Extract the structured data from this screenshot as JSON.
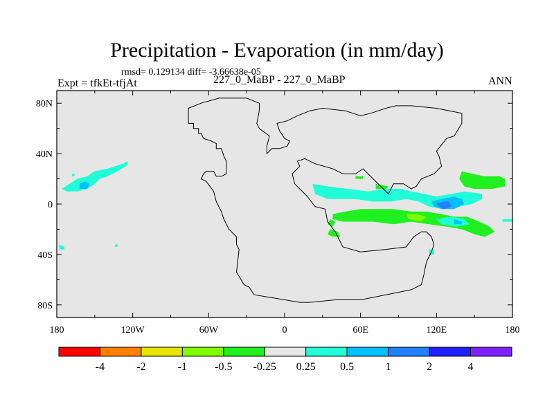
{
  "chart_data": {
    "type": "contour-map",
    "title": "Precipitation - Evaporation (in mm/day)",
    "stats_line": "rmsd= 0.129134 diff= -3.66638e-05",
    "left_label": "Expt = tfkEt-tfjAt",
    "center_label": "227_0_MaBP - 227_0_MaBP",
    "right_label": "ANN",
    "xlim": [
      -180,
      180
    ],
    "ylim": [
      -90,
      90
    ],
    "x_ticks": [
      {
        "value": -180,
        "label": "180"
      },
      {
        "value": -120,
        "label": "120W"
      },
      {
        "value": -60,
        "label": "60W"
      },
      {
        "value": 0,
        "label": "0"
      },
      {
        "value": 60,
        "label": "60E"
      },
      {
        "value": 120,
        "label": "120E"
      },
      {
        "value": 180,
        "label": "180"
      }
    ],
    "y_ticks": [
      {
        "value": 80,
        "label": "80N"
      },
      {
        "value": 40,
        "label": "40N"
      },
      {
        "value": 0,
        "label": "0"
      },
      {
        "value": -40,
        "label": "40S"
      },
      {
        "value": -80,
        "label": "80S"
      }
    ],
    "colorbar": {
      "colors": [
        "#ff0000",
        "#ff8000",
        "#e6e600",
        "#80ff00",
        "#20f020",
        "#e6e6e6",
        "#20ffd8",
        "#00c0ff",
        "#2080ff",
        "#2020ff",
        "#8020ff"
      ],
      "labels": [
        "-4",
        "-2",
        "-1",
        "-0.5",
        "-0.25",
        "0.25",
        "0.5",
        "1",
        "2",
        "4"
      ]
    },
    "coastline": [
      [
        -76,
        68
      ],
      [
        -76,
        64
      ],
      [
        -72,
        64
      ],
      [
        -72,
        60
      ],
      [
        -68,
        60
      ],
      [
        -68,
        56
      ],
      [
        -66,
        56
      ],
      [
        -64,
        52
      ],
      [
        -58,
        50
      ],
      [
        -54,
        48
      ],
      [
        -54,
        44
      ],
      [
        -50,
        44
      ],
      [
        -48,
        38
      ],
      [
        -46,
        34
      ],
      [
        -46,
        24
      ],
      [
        -50,
        22
      ],
      [
        -54,
        22
      ],
      [
        -56,
        26
      ],
      [
        -62,
        26
      ],
      [
        -64,
        24
      ],
      [
        -66,
        20
      ],
      [
        -62,
        18
      ],
      [
        -56,
        10
      ],
      [
        -54,
        2
      ],
      [
        -50,
        -6
      ],
      [
        -48,
        -12
      ],
      [
        -44,
        -20
      ],
      [
        -38,
        -26
      ],
      [
        -38,
        -32
      ],
      [
        -36,
        -36
      ],
      [
        -38,
        -54
      ],
      [
        -32,
        -64
      ],
      [
        -28,
        -66
      ],
      [
        -24,
        -72
      ],
      [
        -12,
        -74
      ],
      [
        12,
        -78
      ],
      [
        20,
        -78
      ],
      [
        40,
        -76
      ],
      [
        60,
        -76
      ],
      [
        80,
        -72
      ],
      [
        100,
        -68
      ],
      [
        108,
        -64
      ],
      [
        110,
        -56
      ],
      [
        112,
        -46
      ],
      [
        116,
        -38
      ],
      [
        118,
        -32
      ],
      [
        116,
        -26
      ],
      [
        112,
        -22
      ],
      [
        108,
        -22
      ],
      [
        102,
        -26
      ],
      [
        96,
        -34
      ],
      [
        80,
        -36
      ],
      [
        60,
        -38
      ],
      [
        46,
        -34
      ],
      [
        40,
        -22
      ],
      [
        34,
        -14
      ],
      [
        32,
        -4
      ],
      [
        24,
        -2
      ],
      [
        18,
        6
      ],
      [
        12,
        12
      ],
      [
        8,
        16
      ],
      [
        6,
        24
      ],
      [
        10,
        28
      ],
      [
        12,
        30
      ],
      [
        10,
        34
      ],
      [
        16,
        36
      ],
      [
        24,
        32
      ],
      [
        38,
        28
      ],
      [
        46,
        24
      ],
      [
        56,
        24
      ],
      [
        62,
        28
      ],
      [
        70,
        20
      ],
      [
        78,
        12
      ],
      [
        82,
        8
      ],
      [
        86,
        16
      ],
      [
        94,
        16
      ],
      [
        100,
        12
      ],
      [
        104,
        14
      ],
      [
        108,
        20
      ],
      [
        118,
        24
      ],
      [
        124,
        30
      ],
      [
        122,
        38
      ],
      [
        120,
        42
      ],
      [
        128,
        52
      ],
      [
        134,
        54
      ],
      [
        140,
        64
      ],
      [
        140,
        72
      ],
      [
        120,
        76
      ],
      [
        100,
        78
      ],
      [
        88,
        78
      ],
      [
        80,
        76
      ],
      [
        68,
        72
      ],
      [
        60,
        70
      ],
      [
        48,
        74
      ],
      [
        30,
        76
      ],
      [
        20,
        74
      ],
      [
        10,
        70
      ],
      [
        2,
        66
      ],
      [
        -6,
        64
      ],
      [
        -4,
        58
      ],
      [
        0,
        52
      ],
      [
        4,
        50
      ],
      [
        2,
        46
      ],
      [
        -4,
        44
      ],
      [
        -10,
        44
      ],
      [
        -14,
        40
      ],
      [
        -14,
        46
      ],
      [
        -12,
        54
      ],
      [
        -20,
        60
      ],
      [
        -22,
        64
      ],
      [
        -20,
        74
      ],
      [
        -20,
        80
      ],
      [
        -30,
        84
      ],
      [
        -40,
        84
      ],
      [
        -52,
        84
      ],
      [
        -66,
        80
      ],
      [
        -76,
        76
      ],
      [
        -76,
        68
      ]
    ],
    "contour_regions": [
      {
        "level_index": 6,
        "points": [
          [
            -170,
            16
          ],
          [
            -164,
            20
          ],
          [
            -156,
            22
          ],
          [
            -150,
            26
          ],
          [
            -140,
            28
          ],
          [
            -134,
            30
          ],
          [
            -128,
            32
          ],
          [
            -124,
            34
          ],
          [
            -124,
            31
          ],
          [
            -132,
            26
          ],
          [
            -140,
            22
          ],
          [
            -146,
            20
          ],
          [
            -150,
            16
          ],
          [
            -156,
            12
          ],
          [
            -164,
            10
          ],
          [
            -172,
            10
          ],
          [
            -176,
            12
          ]
        ]
      },
      {
        "level_index": 7,
        "points": [
          [
            -162,
            16
          ],
          [
            -158,
            18
          ],
          [
            -154,
            16
          ],
          [
            -156,
            12
          ],
          [
            -162,
            12
          ]
        ]
      },
      {
        "level_index": 6,
        "points": [
          [
            -178,
            -32
          ],
          [
            -174,
            -34
          ],
          [
            -174,
            -36
          ],
          [
            -178,
            -36
          ]
        ]
      },
      {
        "level_index": 6,
        "points": [
          [
            -168,
            24
          ],
          [
            -166,
            24
          ],
          [
            -166,
            22
          ],
          [
            -168,
            22
          ]
        ]
      },
      {
        "level_index": 6,
        "points": [
          [
            -134,
            -32
          ],
          [
            -132,
            -32
          ],
          [
            -132,
            -34
          ],
          [
            -134,
            -34
          ]
        ]
      },
      {
        "level_index": 6,
        "points": [
          [
            22,
            16
          ],
          [
            34,
            14
          ],
          [
            50,
            12
          ],
          [
            66,
            10
          ],
          [
            80,
            12
          ],
          [
            92,
            12
          ],
          [
            100,
            10
          ],
          [
            110,
            8
          ],
          [
            120,
            6
          ],
          [
            132,
            8
          ],
          [
            142,
            10
          ],
          [
            156,
            8
          ],
          [
            156,
            4
          ],
          [
            148,
            0
          ],
          [
            138,
            -2
          ],
          [
            126,
            -4
          ],
          [
            114,
            -2
          ],
          [
            106,
            2
          ],
          [
            96,
            4
          ],
          [
            84,
            2
          ],
          [
            70,
            2
          ],
          [
            56,
            4
          ],
          [
            44,
            4
          ],
          [
            34,
            4
          ],
          [
            24,
            8
          ]
        ]
      },
      {
        "level_index": 7,
        "points": [
          [
            116,
            2
          ],
          [
            124,
            4
          ],
          [
            134,
            6
          ],
          [
            140,
            4
          ],
          [
            142,
            0
          ],
          [
            134,
            -4
          ],
          [
            124,
            -4
          ],
          [
            118,
            -2
          ]
        ]
      },
      {
        "level_index": 8,
        "points": [
          [
            120,
            0
          ],
          [
            126,
            2
          ],
          [
            130,
            2
          ],
          [
            132,
            -2
          ],
          [
            126,
            -4
          ],
          [
            122,
            -2
          ]
        ]
      },
      {
        "level_index": 4,
        "points": [
          [
            38,
            -8
          ],
          [
            48,
            -6
          ],
          [
            60,
            -4
          ],
          [
            72,
            -4
          ],
          [
            86,
            -4
          ],
          [
            100,
            -6
          ],
          [
            112,
            -6
          ],
          [
            124,
            -8
          ],
          [
            134,
            -10
          ],
          [
            144,
            -10
          ],
          [
            154,
            -14
          ],
          [
            162,
            -18
          ],
          [
            166,
            -22
          ],
          [
            158,
            -26
          ],
          [
            150,
            -24
          ],
          [
            140,
            -20
          ],
          [
            128,
            -18
          ],
          [
            114,
            -16
          ],
          [
            100,
            -14
          ],
          [
            86,
            -16
          ],
          [
            70,
            -14
          ],
          [
            58,
            -14
          ],
          [
            46,
            -14
          ],
          [
            38,
            -12
          ]
        ]
      },
      {
        "level_index": 3,
        "points": [
          [
            96,
            -8
          ],
          [
            104,
            -8
          ],
          [
            112,
            -10
          ],
          [
            108,
            -14
          ],
          [
            98,
            -12
          ]
        ]
      },
      {
        "level_index": 6,
        "points": [
          [
            120,
            -12
          ],
          [
            132,
            -10
          ],
          [
            142,
            -12
          ],
          [
            146,
            -16
          ],
          [
            136,
            -18
          ],
          [
            124,
            -16
          ]
        ]
      },
      {
        "level_index": 7,
        "points": [
          [
            134,
            -12
          ],
          [
            140,
            -14
          ],
          [
            140,
            -16
          ],
          [
            134,
            -16
          ]
        ]
      },
      {
        "level_index": 4,
        "points": [
          [
            140,
            26
          ],
          [
            148,
            24
          ],
          [
            158,
            22
          ],
          [
            170,
            22
          ],
          [
            174,
            20
          ],
          [
            174,
            14
          ],
          [
            164,
            12
          ],
          [
            150,
            12
          ],
          [
            142,
            14
          ],
          [
            138,
            20
          ]
        ]
      },
      {
        "level_index": 6,
        "points": [
          [
            172,
            -12
          ],
          [
            180,
            -12
          ],
          [
            180,
            -14
          ],
          [
            172,
            -14
          ]
        ]
      },
      {
        "level_index": 4,
        "points": [
          [
            56,
            22
          ],
          [
            62,
            22
          ],
          [
            62,
            20
          ],
          [
            56,
            20
          ]
        ]
      },
      {
        "level_index": 4,
        "points": [
          [
            72,
            16
          ],
          [
            82,
            14
          ],
          [
            80,
            12
          ],
          [
            72,
            12
          ]
        ]
      },
      {
        "level_index": 4,
        "points": [
          [
            36,
            -20
          ],
          [
            42,
            -22
          ],
          [
            44,
            -26
          ],
          [
            38,
            -26
          ],
          [
            34,
            -24
          ]
        ]
      },
      {
        "level_index": 4,
        "points": [
          [
            36,
            -12
          ],
          [
            40,
            -14
          ],
          [
            38,
            -18
          ],
          [
            34,
            -16
          ]
        ]
      },
      {
        "level_index": 6,
        "points": [
          [
            114,
            -36
          ],
          [
            118,
            -36
          ],
          [
            118,
            -40
          ],
          [
            114,
            -40
          ]
        ]
      }
    ]
  }
}
